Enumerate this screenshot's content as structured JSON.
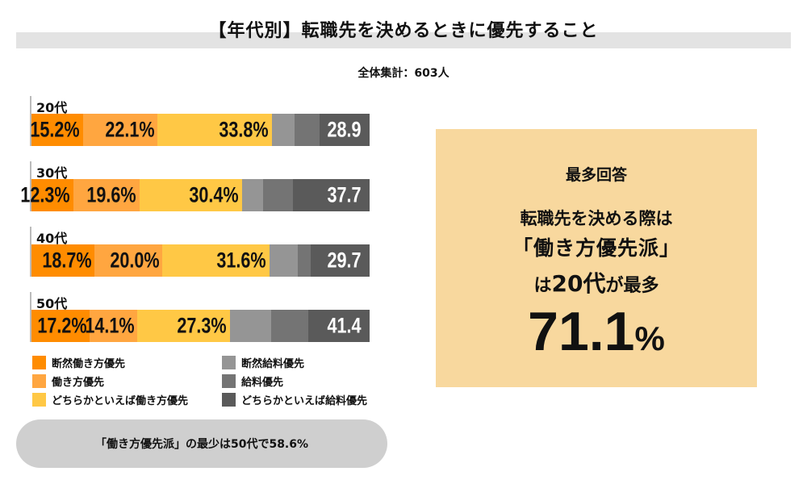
{
  "title": "【年代別】転職先を決めるときに優先すること",
  "subtitle": "全体集計：603人",
  "chart_data": {
    "type": "bar",
    "orientation": "horizontal",
    "stacked": true,
    "unit": "%",
    "categories": [
      "20代",
      "30代",
      "40代",
      "50代"
    ],
    "series": [
      {
        "name": "断然働き方優先",
        "color": "#ff8c00",
        "values": [
          15.2,
          12.3,
          18.7,
          17.2
        ]
      },
      {
        "name": "働き方優先",
        "color": "#ffa640",
        "values": [
          22.1,
          19.6,
          20.0,
          14.1
        ]
      },
      {
        "name": "どちらかといえば働き方優先",
        "color": "#ffc845",
        "values": [
          33.8,
          30.4,
          31.6,
          27.3
        ]
      },
      {
        "name": "断然給料優先",
        "color": "#959595",
        "values": [
          6.6,
          6.2,
          8.4,
          12.2
        ]
      },
      {
        "name": "給料優先",
        "color": "#747474",
        "values": [
          7.6,
          8.8,
          3.8,
          11.1
        ]
      },
      {
        "name": "どちらかといえば給料優先",
        "color": "#5a5a5a",
        "values": [
          14.7,
          22.7,
          17.5,
          18.1
        ]
      }
    ],
    "data_labels": [
      [
        "15.2%",
        "22.1%",
        "33.8%",
        "28.9"
      ],
      [
        "12.3%",
        "19.6%",
        "30.4%",
        "37.7"
      ],
      [
        "18.7%",
        "20.0%",
        "31.6%",
        "29.7"
      ],
      [
        "17.2%",
        "14.1%",
        "27.3%",
        "41.4"
      ]
    ],
    "xlim": [
      0,
      100
    ],
    "legend_position": "bottom"
  },
  "note": "「働き方優先派」の最少は50代で58.6%",
  "highlight": {
    "heading": "最多回答",
    "line1": "転職先を決める際は",
    "line2": "「働き方優先派」",
    "line3a": "は",
    "line3b": "20代",
    "line3c": "が最多",
    "value": "71.1",
    "unit": "%"
  }
}
